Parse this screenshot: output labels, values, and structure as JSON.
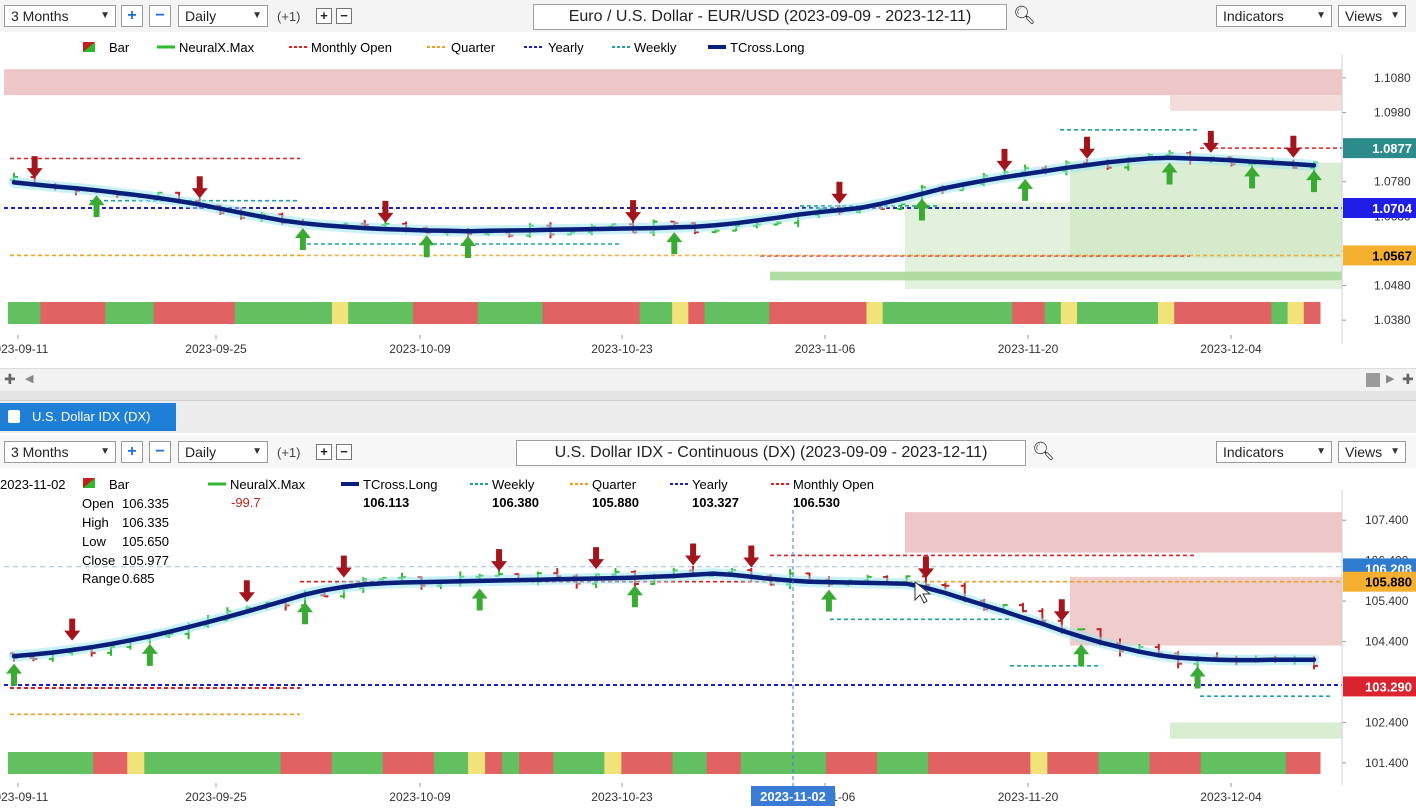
{
  "top": {
    "toolbar": {
      "period": "3 Months",
      "interval": "Daily",
      "shift": "(+1)",
      "title": "Euro / U.S. Dollar - EUR/USD (2023-09-09 - 2023-12-11)",
      "indicators": "Indicators",
      "views": "Views"
    },
    "legend": [
      "Bar",
      "NeuralX.Max",
      "Monthly Open",
      "Quarter",
      "Yearly",
      "Weekly",
      "TCross.Long"
    ]
  },
  "tab": {
    "label": "U.S. Dollar IDX (DX)"
  },
  "bottom": {
    "toolbar": {
      "period": "3 Months",
      "interval": "Daily",
      "shift": "(+1)",
      "title": "U.S. Dollar IDX - Continuous (DX) (2023-09-09 - 2023-12-11)",
      "indicators": "Indicators",
      "views": "Views"
    },
    "legend": [
      {
        "name": "Bar",
        "value": ""
      },
      {
        "name": "NeuralX.Max",
        "value": "-99.7"
      },
      {
        "name": "TCross.Long",
        "value": "106.113"
      },
      {
        "name": "Weekly",
        "value": "106.380"
      },
      {
        "name": "Quarter",
        "value": "105.880"
      },
      {
        "name": "Yearly",
        "value": "103.327"
      },
      {
        "name": "Monthly Open",
        "value": "106.530"
      }
    ],
    "cursor_date": "2023-11-02",
    "ohlc": [
      {
        "label": "Open",
        "value": "106.335"
      },
      {
        "label": "High",
        "value": "106.335"
      },
      {
        "label": "Low",
        "value": "105.650"
      },
      {
        "label": "Close",
        "value": "105.977"
      },
      {
        "label": "Range",
        "value": "0.685"
      }
    ]
  },
  "colors": {
    "up": "#2db82d",
    "down": "#c21f1f",
    "tcross": "#0a1f7a",
    "yearly": "#1e1ec8",
    "monthly": "#e02020",
    "quarter": "#f0a020",
    "weekly": "#20a0a0",
    "greenzone": "#cfe8c4",
    "redzone": "#ecc4c4",
    "tab": "#1f7fd6"
  },
  "icons": [
    "zoom-in-icon",
    "zoom-out-icon",
    "search-icon",
    "arrow-up-icon",
    "arrow-down-icon",
    "scroll-left-icon",
    "scroll-right-icon"
  ],
  "chart_data": [
    {
      "type": "bar",
      "title": "Euro / U.S. Dollar - EUR/USD (2023-09-09 - 2023-12-11)",
      "x_ticks": [
        "2023-09-11",
        "2023-09-25",
        "2023-10-09",
        "2023-10-23",
        "2023-11-06",
        "2023-11-20",
        "2023-12-04"
      ],
      "y_ticks": [
        1.038,
        1.048,
        1.058,
        1.068,
        1.078,
        1.088,
        1.098,
        1.108
      ],
      "ylim": [
        1.034,
        1.112
      ],
      "price_labels": [
        {
          "text": "1.0877",
          "value": 1.0877,
          "color": "#2e8b8b"
        },
        {
          "text": "1.0704",
          "value": 1.0704,
          "color": "#1e1ee6"
        },
        {
          "text": "1.0567",
          "value": 1.0567,
          "color": "#f5b030"
        }
      ],
      "levels": {
        "yearly": 1.0704,
        "quarter": 1.0567,
        "monthly": 1.0877
      },
      "series": [
        {
          "name": "TCross.Long",
          "values": [
            1.0778,
            1.0772,
            1.0766,
            1.0761,
            1.0755,
            1.0748,
            1.0741,
            1.0733,
            1.0724,
            1.0714,
            1.0702,
            1.069,
            1.0679,
            1.0668,
            1.066,
            1.0654,
            1.065,
            1.0646,
            1.0643,
            1.0641,
            1.0639,
            1.0638,
            1.0637,
            1.0638,
            1.0639,
            1.064,
            1.0641,
            1.0642,
            1.0643,
            1.0644,
            1.0645,
            1.0646,
            1.0648,
            1.065,
            1.0654,
            1.066,
            1.0668,
            1.0676,
            1.0685,
            1.0692,
            1.0698,
            1.0704,
            1.0716,
            1.073,
            1.0745,
            1.076,
            1.0772,
            1.0783,
            1.0793,
            1.0802,
            1.0811,
            1.082,
            1.0828,
            1.0836,
            1.0842,
            1.0847,
            1.0849,
            1.0847,
            1.0845,
            1.0842,
            1.0838,
            1.0835,
            1.0831,
            1.0827
          ]
        }
      ]
    },
    {
      "type": "bar",
      "title": "U.S. Dollar IDX - Continuous (DX) (2023-09-09 - 2023-12-11)",
      "x_ticks": [
        "2023-09-11",
        "2023-09-25",
        "2023-10-09",
        "2023-10-23",
        "2023-11-06",
        "2023-11-20",
        "2023-12-04"
      ],
      "y_ticks": [
        101.4,
        102.4,
        103.4,
        104.4,
        105.4,
        106.4,
        107.4
      ],
      "ylim": [
        101.1,
        107.9
      ],
      "price_labels": [
        {
          "text": "106.208",
          "value": 106.208,
          "color": "#2e7bd0"
        },
        {
          "text": "105.880",
          "value": 105.88,
          "color": "#f5b030"
        },
        {
          "text": "103.290",
          "value": 103.29,
          "color": "#d9232e"
        }
      ],
      "levels": {
        "yearly": 103.327,
        "quarter": 105.88,
        "monthly": 106.53,
        "weekly": 106.38
      },
      "series": [
        {
          "name": "TCross.Long",
          "values": [
            104.04,
            104.08,
            104.13,
            104.19,
            104.26,
            104.34,
            104.43,
            104.53,
            104.64,
            104.76,
            104.88,
            105.01,
            105.14,
            105.28,
            105.42,
            105.56,
            105.67,
            105.75,
            105.81,
            105.84,
            105.86,
            105.87,
            105.88,
            105.89,
            105.9,
            105.91,
            105.92,
            105.93,
            105.94,
            105.95,
            105.96,
            105.97,
            105.98,
            106.0,
            106.02,
            106.05,
            106.08,
            106.05,
            106.0,
            105.95,
            105.91,
            105.88,
            105.87,
            105.86,
            105.85,
            105.84,
            105.83,
            105.73,
            105.6,
            105.45,
            105.3,
            105.15,
            104.99,
            104.84,
            104.67,
            104.52,
            104.38,
            104.26,
            104.15,
            104.06,
            104.0,
            103.97,
            103.95,
            103.94,
            103.94,
            103.95,
            103.95,
            103.95
          ]
        }
      ]
    }
  ]
}
